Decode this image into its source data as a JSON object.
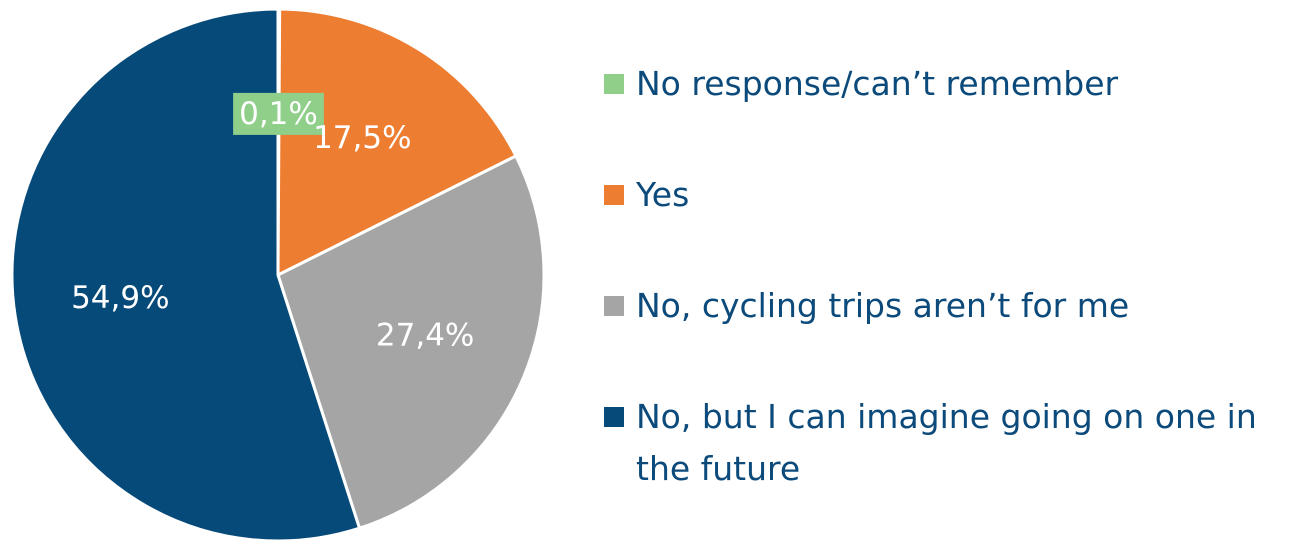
{
  "chart_data": {
    "type": "pie",
    "categories": [
      "No response/can’t remember",
      "Yes",
      "No, cycling trips aren’t for me",
      "No, but I can imagine going on one in the future"
    ],
    "values": [
      0.1,
      17.5,
      27.4,
      54.9
    ],
    "value_labels": [
      "0,1%",
      "17,5%",
      "27,4%",
      "54,9%"
    ],
    "colors": [
      "#8fcf8a",
      "#ed7d31",
      "#a5a5a5",
      "#064a7a"
    ],
    "legend": "right"
  }
}
